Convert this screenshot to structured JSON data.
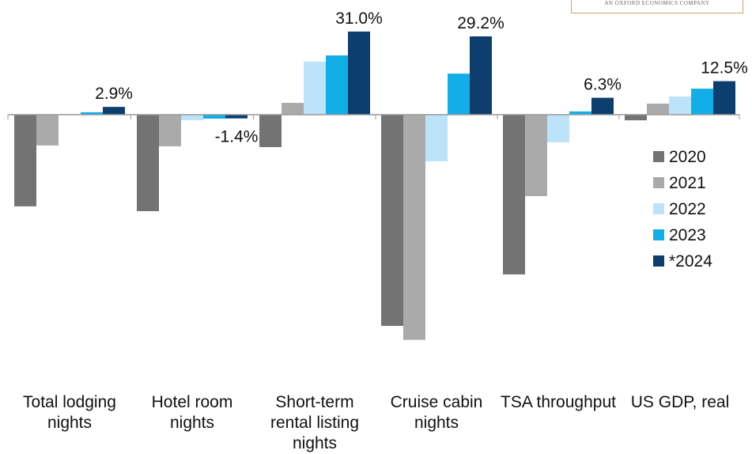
{
  "chart_data": {
    "type": "bar",
    "logo_text": "AN OXFORD ECONOMICS COMPANY",
    "categories": [
      "Total lodging nights",
      "Hotel room nights",
      "Short-term rental listing nights",
      "Cruise cabin nights",
      "TSA throughput",
      "US GDP, real"
    ],
    "series": [
      {
        "name": "2020",
        "color": "#737373",
        "values": [
          -34.2,
          -36.0,
          -12.1,
          -78.8,
          -59.6,
          -2.1
        ]
      },
      {
        "name": "2021",
        "color": "#aaaaaa",
        "values": [
          -11.5,
          -11.8,
          4.4,
          -84.0,
          -30.4,
          4.1
        ]
      },
      {
        "name": "2022",
        "color": "#bde3fa",
        "values": [
          0.2,
          -2.1,
          19.8,
          -17.4,
          -10.3,
          6.8
        ]
      },
      {
        "name": "2023",
        "color": "#12aee8",
        "values": [
          0.9,
          -1.5,
          22.1,
          15.3,
          1.2,
          9.7
        ]
      },
      {
        "name": "*2024",
        "color": "#0c3e6e",
        "values": [
          2.9,
          -1.4,
          31.0,
          29.2,
          6.3,
          12.5
        ],
        "value_labels": [
          "2.9%",
          "-1.4%",
          "31.0%",
          "29.2%",
          "6.3%",
          "12.5%"
        ]
      }
    ],
    "ylim": [
      -90,
      32
    ],
    "legend": "right"
  }
}
